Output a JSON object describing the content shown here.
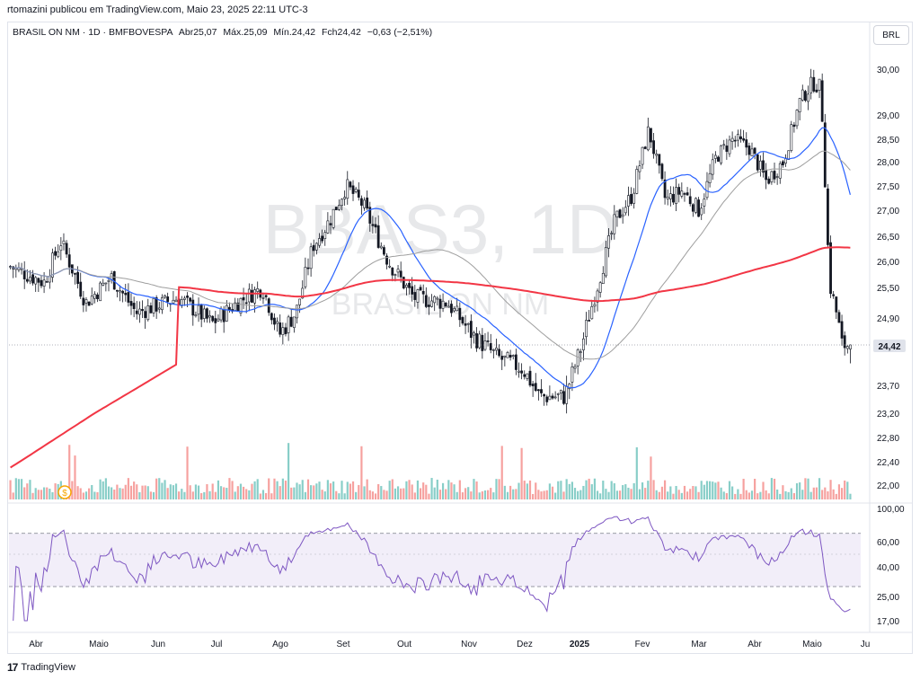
{
  "header": {
    "published": "rtomazini publicou em TradingView.com, Maio 23, 2025 22:11 UTC-3"
  },
  "legend": {
    "symbol": "BRASIL ON NM · 1D · BMFBOVESPA",
    "open": "Abr25,07",
    "high": "Máx.25,09",
    "low": "Mín.24,42",
    "close": "Fch24,42",
    "change": "−0,63 (−2,51%)"
  },
  "currency": "BRL",
  "watermark": {
    "ticker": "BBAS3, 1D",
    "name": "BRASIL ON NM"
  },
  "last_price_label": "24,42",
  "footer": {
    "brand": "TradingView"
  },
  "colors": {
    "up": "#26a69a",
    "down": "#ef5350",
    "sma_fast": "#2962ff",
    "sma_mid": "#9e9e9e",
    "sma_slow": "#f23645",
    "rsi_line": "#7e57c2",
    "rsi_band": "#ede7f6",
    "axis_text": "#131722"
  },
  "chart_data": {
    "type": "candlestick",
    "title": "",
    "price_axis": {
      "ticks": [
        "30,00",
        "29,00",
        "28,50",
        "28,00",
        "27,50",
        "27,00",
        "26,50",
        "26,00",
        "25,50",
        "24,90",
        "23,70",
        "23,20",
        "22,80",
        "22,40",
        "22,00"
      ],
      "tick_values": [
        30.0,
        29.0,
        28.5,
        28.0,
        27.5,
        27.0,
        26.5,
        26.0,
        25.5,
        24.9,
        23.7,
        23.2,
        22.8,
        22.4,
        22.0
      ]
    },
    "time_axis": [
      "Abr",
      "Maio",
      "Jun",
      "Jul",
      "Ago",
      "Set",
      "Out",
      "Nov",
      "Dez",
      "2025",
      "Fev",
      "Mar",
      "Abr",
      "Maio",
      "Ju"
    ],
    "last_close": 24.42,
    "price_path": [
      [
        0,
        25.9
      ],
      [
        0.04,
        25.6
      ],
      [
        0.06,
        26.4
      ],
      [
        0.09,
        25.2
      ],
      [
        0.12,
        25.7
      ],
      [
        0.15,
        25.0
      ],
      [
        0.2,
        25.3
      ],
      [
        0.24,
        24.8
      ],
      [
        0.27,
        25.2
      ],
      [
        0.3,
        25.5
      ],
      [
        0.32,
        24.6
      ],
      [
        0.34,
        25.0
      ],
      [
        0.36,
        26.3
      ],
      [
        0.38,
        26.8
      ],
      [
        0.4,
        27.5
      ],
      [
        0.42,
        27.1
      ],
      [
        0.45,
        26.0
      ],
      [
        0.48,
        25.3
      ],
      [
        0.52,
        25.2
      ],
      [
        0.55,
        24.6
      ],
      [
        0.58,
        24.2
      ],
      [
        0.61,
        24.0
      ],
      [
        0.63,
        23.5
      ],
      [
        0.66,
        23.5
      ],
      [
        0.68,
        24.4
      ],
      [
        0.7,
        25.6
      ],
      [
        0.72,
        26.8
      ],
      [
        0.74,
        27.3
      ],
      [
        0.76,
        28.7
      ],
      [
        0.78,
        27.2
      ],
      [
        0.8,
        27.4
      ],
      [
        0.82,
        27.0
      ],
      [
        0.84,
        28.1
      ],
      [
        0.86,
        28.5
      ],
      [
        0.88,
        28.3
      ],
      [
        0.9,
        27.6
      ],
      [
        0.92,
        28.0
      ],
      [
        0.94,
        29.3
      ],
      [
        0.955,
        29.7
      ],
      [
        0.965,
        29.6
      ],
      [
        0.975,
        25.6
      ],
      [
        0.985,
        24.9
      ],
      [
        0.99,
        24.42
      ]
    ],
    "rsi": {
      "ticks": [
        "100,00",
        "60,00",
        "40,00",
        "25,00",
        "17,00"
      ],
      "tick_values": [
        100,
        60,
        40,
        25,
        17
      ],
      "upper_band": 70,
      "lower_band": 30
    },
    "moving_averages": [
      {
        "color": "#2962ff"
      },
      {
        "color": "#9e9e9e"
      },
      {
        "color": "#f23645"
      }
    ]
  }
}
